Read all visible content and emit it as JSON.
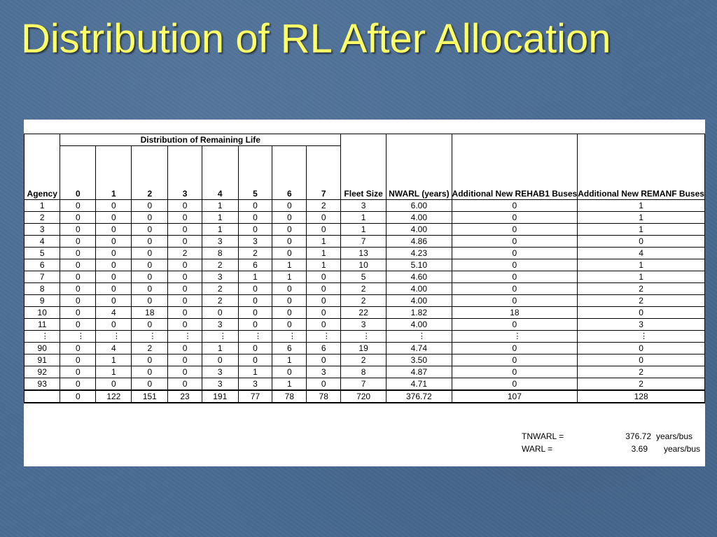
{
  "slide": {
    "title": "Distribution of RL After Allocation"
  },
  "table": {
    "group_header": "Distribution of Remaining Life",
    "headers": {
      "agency": "Agency",
      "rl": [
        "0",
        "1",
        "2",
        "3",
        "4",
        "5",
        "6",
        "7"
      ],
      "fleet_size": "Fleet Size",
      "nwarl": "NWARL (years)",
      "rehab": "Additional New REHAB1 Buses",
      "remanf": "Additional New REMANF Buses"
    },
    "rows": [
      [
        "1",
        "0",
        "0",
        "0",
        "0",
        "1",
        "0",
        "0",
        "2",
        "3",
        "6.00",
        "0",
        "1"
      ],
      [
        "2",
        "0",
        "0",
        "0",
        "0",
        "1",
        "0",
        "0",
        "0",
        "1",
        "4.00",
        "0",
        "1"
      ],
      [
        "3",
        "0",
        "0",
        "0",
        "0",
        "1",
        "0",
        "0",
        "0",
        "1",
        "4.00",
        "0",
        "1"
      ],
      [
        "4",
        "0",
        "0",
        "0",
        "0",
        "3",
        "3",
        "0",
        "1",
        "7",
        "4.86",
        "0",
        "0"
      ],
      [
        "5",
        "0",
        "0",
        "0",
        "2",
        "8",
        "2",
        "0",
        "1",
        "13",
        "4.23",
        "0",
        "4"
      ],
      [
        "6",
        "0",
        "0",
        "0",
        "0",
        "2",
        "6",
        "1",
        "1",
        "10",
        "5.10",
        "0",
        "1"
      ],
      [
        "7",
        "0",
        "0",
        "0",
        "0",
        "3",
        "1",
        "1",
        "0",
        "5",
        "4.60",
        "0",
        "1"
      ],
      [
        "8",
        "0",
        "0",
        "0",
        "0",
        "2",
        "0",
        "0",
        "0",
        "2",
        "4.00",
        "0",
        "2"
      ],
      [
        "9",
        "0",
        "0",
        "0",
        "0",
        "2",
        "0",
        "0",
        "0",
        "2",
        "4.00",
        "0",
        "2"
      ],
      [
        "10",
        "0",
        "4",
        "18",
        "0",
        "0",
        "0",
        "0",
        "0",
        "22",
        "1.82",
        "18",
        "0"
      ],
      [
        "11",
        "0",
        "0",
        "0",
        "0",
        "3",
        "0",
        "0",
        "0",
        "3",
        "4.00",
        "0",
        "3"
      ]
    ],
    "ellipsis": "⋮",
    "rows_bottom": [
      [
        "90",
        "0",
        "4",
        "2",
        "0",
        "1",
        "0",
        "6",
        "6",
        "19",
        "4.74",
        "0",
        "0"
      ],
      [
        "91",
        "0",
        "1",
        "0",
        "0",
        "0",
        "0",
        "1",
        "0",
        "2",
        "3.50",
        "0",
        "0"
      ],
      [
        "92",
        "0",
        "1",
        "0",
        "0",
        "3",
        "1",
        "0",
        "3",
        "8",
        "4.87",
        "0",
        "2"
      ],
      [
        "93",
        "0",
        "0",
        "0",
        "0",
        "3",
        "3",
        "1",
        "0",
        "7",
        "4.71",
        "0",
        "2"
      ]
    ],
    "totals": [
      "",
      "0",
      "122",
      "151",
      "23",
      "191",
      "77",
      "78",
      "78",
      "720",
      "376.72",
      "107",
      "128"
    ]
  },
  "summary": {
    "tnwarl_label": "TNWARL =",
    "tnwarl_value": "376.72",
    "tnwarl_unit": "years/bus",
    "warl_label": "WARL =",
    "warl_value": "3.69",
    "warl_unit": "years/bus"
  }
}
